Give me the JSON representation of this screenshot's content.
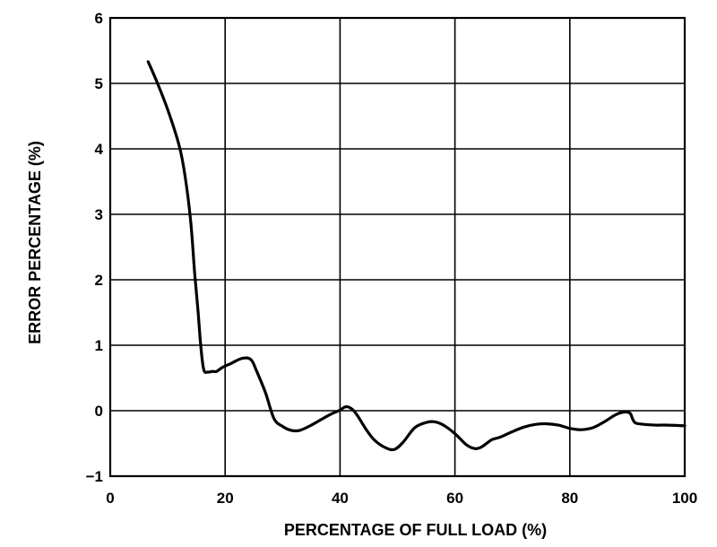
{
  "chart_data": {
    "type": "line",
    "title": "",
    "xlabel": "PERCENTAGE OF FULL LOAD (%)",
    "ylabel": "ERROR PERCENTAGE (%)",
    "xlim": [
      0,
      100
    ],
    "ylim": [
      -1,
      6
    ],
    "x_ticks": [
      0,
      20,
      40,
      60,
      80,
      100
    ],
    "y_ticks": [
      -1,
      0,
      1,
      2,
      3,
      4,
      5,
      6
    ],
    "x_tick_labels": [
      "0",
      "20",
      "40",
      "60",
      "80",
      "100"
    ],
    "y_tick_labels": [
      "−1",
      "0",
      "1",
      "2",
      "3",
      "4",
      "5",
      "6"
    ],
    "grid": true,
    "legend": "none",
    "series": [
      {
        "color": "#000000",
        "x": [
          6.6,
          8,
          10,
          12,
          13,
          14,
          14.7,
          15.3,
          15.8,
          16.3,
          17,
          17.8,
          18.5,
          19.5,
          21,
          23,
          24.5,
          25.5,
          27,
          28.5,
          30,
          31.5,
          33,
          35,
          37,
          38.5,
          40,
          41,
          42,
          43,
          44.5,
          46,
          48,
          49.5,
          51,
          53,
          55,
          56.5,
          58,
          60,
          62,
          63.5,
          64.5,
          65.5,
          66.5,
          68,
          70,
          72,
          74,
          76,
          78,
          80,
          82,
          84,
          86,
          88,
          89.5,
          90.5,
          91,
          91.5,
          93,
          95,
          97,
          100
        ],
        "y": [
          5.33,
          5.05,
          4.6,
          4.05,
          3.6,
          2.9,
          2.1,
          1.5,
          0.95,
          0.62,
          0.59,
          0.6,
          0.6,
          0.66,
          0.72,
          0.8,
          0.78,
          0.6,
          0.28,
          -0.12,
          -0.24,
          -0.3,
          -0.3,
          -0.22,
          -0.12,
          -0.05,
          0.01,
          0.06,
          0.03,
          -0.07,
          -0.28,
          -0.45,
          -0.57,
          -0.59,
          -0.48,
          -0.26,
          -0.18,
          -0.17,
          -0.22,
          -0.35,
          -0.52,
          -0.58,
          -0.56,
          -0.5,
          -0.44,
          -0.4,
          -0.32,
          -0.25,
          -0.21,
          -0.2,
          -0.22,
          -0.27,
          -0.29,
          -0.26,
          -0.17,
          -0.06,
          -0.02,
          -0.04,
          -0.14,
          -0.19,
          -0.21,
          -0.22,
          -0.22,
          -0.23
        ]
      }
    ]
  }
}
